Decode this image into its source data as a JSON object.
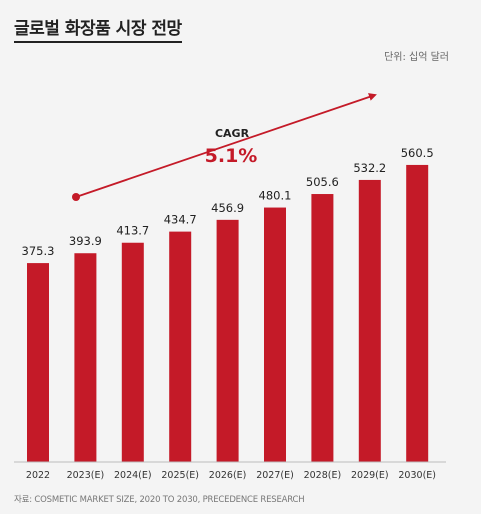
{
  "title": "글로벌 화장품 시장 전망",
  "unit_label": "단위: 십억 달러",
  "source": "자료: COSMETIC MARKET SIZE, 2020 TO 2030, PRECEDENCE RESEARCH",
  "cagr": {
    "label": "CAGR",
    "value": "5.1%"
  },
  "colors": {
    "bar": "#c41a28",
    "accent": "#c41a28",
    "text": "#222222"
  },
  "chart_data": {
    "type": "bar",
    "title": "글로벌 화장품 시장 전망",
    "categories": [
      "2022",
      "2023(E)",
      "2024(E)",
      "2025(E)",
      "2026(E)",
      "2027(E)",
      "2028(E)",
      "2029(E)",
      "2030(E)"
    ],
    "values": [
      375.3,
      393.9,
      413.7,
      434.7,
      456.9,
      480.1,
      505.6,
      532.2,
      560.5
    ],
    "value_labels": [
      "375.3",
      "393.9",
      "413.7",
      "434.7",
      "456.9",
      "480.1",
      "505.6",
      "532.2",
      "560.5"
    ],
    "ylabel": "단위: 십억 달러",
    "grid": false,
    "legend": "none"
  }
}
